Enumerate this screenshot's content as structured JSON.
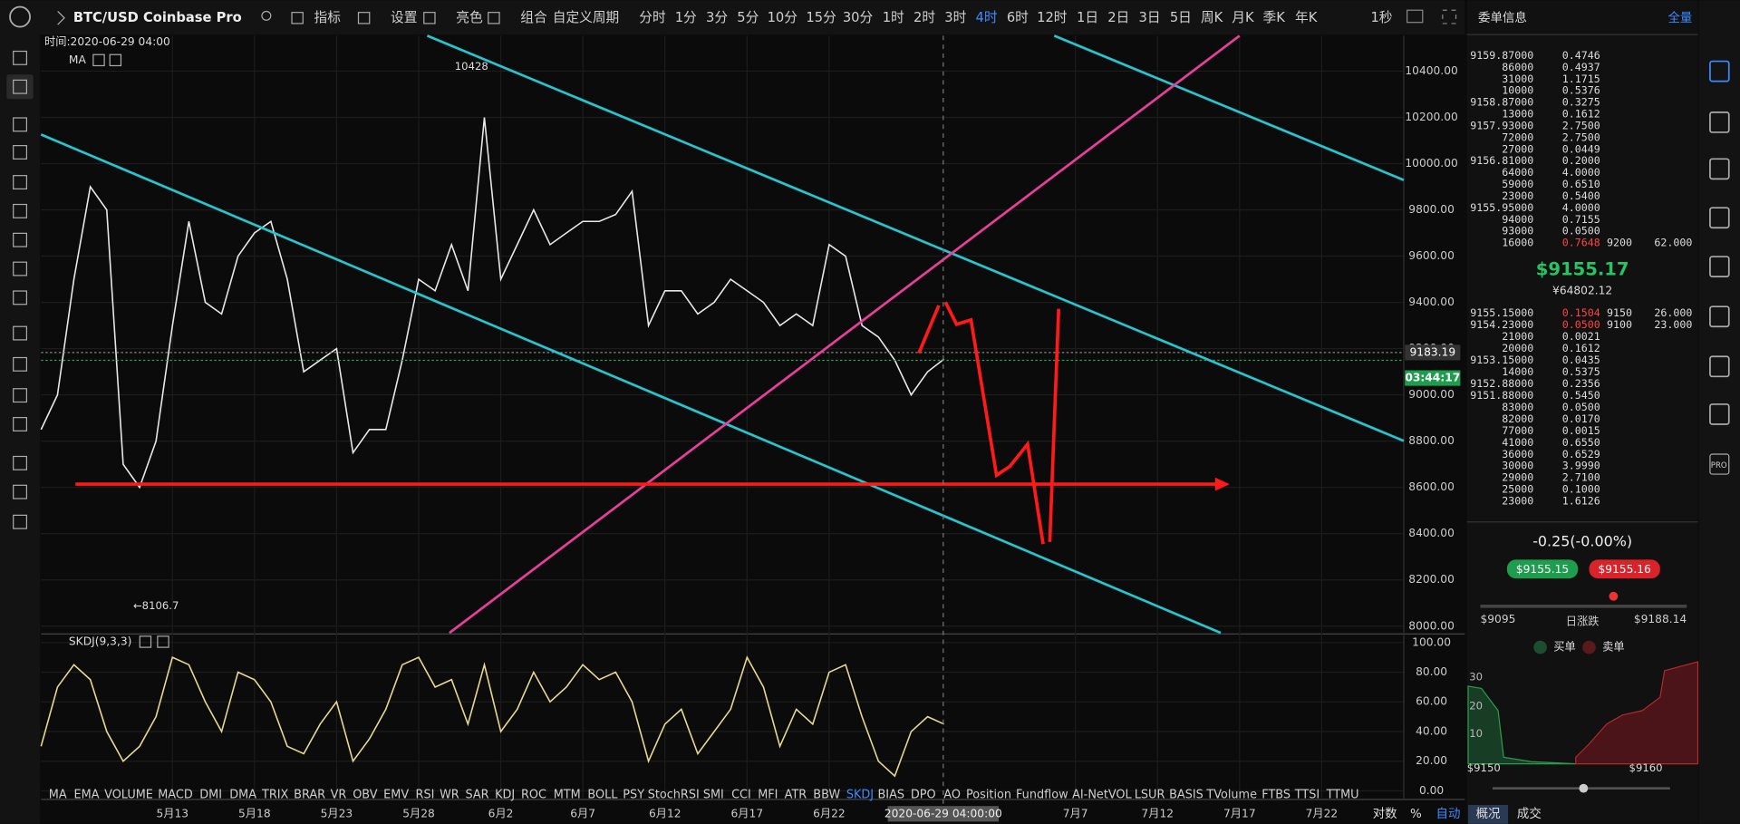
{
  "header": {
    "symbol": "BTC/USD Coinbase Pro",
    "toolbar": [
      "指标",
      "设置",
      "亮色",
      "组合",
      "自定义周期",
      "分时",
      "1分",
      "3分",
      "5分",
      "10分",
      "15分",
      "30分",
      "1时",
      "2时",
      "3时",
      "4时",
      "6时",
      "12时",
      "1日",
      "2日",
      "3日",
      "5日",
      "周K",
      "月K",
      "季K",
      "年K",
      "1秒"
    ],
    "active_index": 15
  },
  "chart_data": [
    {
      "type": "line",
      "crosshair_label": "时间:2020-06-29 04:00",
      "title": "MA",
      "color": "#e8e8e8",
      "x": [
        "2020-05-05",
        "2020-05-06",
        "2020-05-07",
        "2020-05-08",
        "2020-05-09",
        "2020-05-10",
        "2020-05-11",
        "2020-05-12",
        "2020-05-13",
        "2020-05-14",
        "2020-05-15",
        "2020-05-16",
        "2020-05-17",
        "2020-05-18",
        "2020-05-19",
        "2020-05-20",
        "2020-05-21",
        "2020-05-22",
        "2020-05-23",
        "2020-05-24",
        "2020-05-25",
        "2020-05-26",
        "2020-05-27",
        "2020-05-28",
        "2020-05-29",
        "2020-05-30",
        "2020-05-31",
        "2020-06-01",
        "2020-06-02",
        "2020-06-03",
        "2020-06-04",
        "2020-06-05",
        "2020-06-06",
        "2020-06-07",
        "2020-06-08",
        "2020-06-09",
        "2020-06-10",
        "2020-06-11",
        "2020-06-12",
        "2020-06-13",
        "2020-06-14",
        "2020-06-15",
        "2020-06-16",
        "2020-06-17",
        "2020-06-18",
        "2020-06-19",
        "2020-06-20",
        "2020-06-21",
        "2020-06-22",
        "2020-06-23",
        "2020-06-24",
        "2020-06-25",
        "2020-06-26",
        "2020-06-27",
        "2020-06-28",
        "2020-06-29"
      ],
      "values": [
        8850,
        9000,
        9500,
        9900,
        9800,
        8700,
        8600,
        8800,
        9300,
        9750,
        9400,
        9350,
        9600,
        9700,
        9750,
        9500,
        9100,
        9150,
        9200,
        8750,
        8850,
        8850,
        9150,
        9500,
        9450,
        9650,
        9450,
        10200,
        9500,
        9650,
        9800,
        9650,
        9700,
        9750,
        9750,
        9780,
        9880,
        9300,
        9450,
        9450,
        9350,
        9400,
        9500,
        9450,
        9400,
        9300,
        9350,
        9300,
        9650,
        9600,
        9300,
        9250,
        9150,
        9000,
        9100,
        9155
      ],
      "xlim": [
        "2020-05-05",
        "2020-07-27"
      ],
      "ylim": [
        7971,
        10553
      ],
      "yticks": [
        {
          "value": 8000,
          "label": "8000.00"
        },
        {
          "value": 8200,
          "label": "8200.00"
        },
        {
          "value": 8400,
          "label": "8400.00"
        },
        {
          "value": 8600,
          "label": "8600.00"
        },
        {
          "value": 8800,
          "label": "8800.00"
        },
        {
          "value": 9000,
          "label": "9000.00"
        },
        {
          "value": 9200,
          "label": "9200.00"
        },
        {
          "value": 9400,
          "label": "9400.00"
        },
        {
          "value": 9600,
          "label": "9600.00"
        },
        {
          "value": 9800,
          "label": "9800.00"
        },
        {
          "value": 10000,
          "label": "10000.00"
        },
        {
          "value": 10200,
          "label": "10200.00"
        },
        {
          "value": 10400,
          "label": "10400.00"
        }
      ],
      "xticks": [
        {
          "value": "2020-05-13",
          "label": "5月13"
        },
        {
          "value": "2020-05-18",
          "label": "5月18"
        },
        {
          "value": "2020-05-23",
          "label": "5月23"
        },
        {
          "value": "2020-05-28",
          "label": "5月28"
        },
        {
          "value": "2020-06-02",
          "label": "6月2"
        },
        {
          "value": "2020-06-07",
          "label": "6月7"
        },
        {
          "value": "2020-06-12",
          "label": "6月12"
        },
        {
          "value": "2020-06-17",
          "label": "6月17"
        },
        {
          "value": "2020-06-22",
          "label": "6月22"
        },
        {
          "value": "2020-07-07",
          "label": "7月7"
        },
        {
          "value": "2020-07-12",
          "label": "7月12"
        },
        {
          "value": "2020-07-17",
          "label": "7月17"
        },
        {
          "value": "2020-07-22",
          "label": "7月22"
        }
      ],
      "crosshair_x_label": "2020-06-29 04:00:00",
      "high": 10428,
      "low": {
        "value": 8106.7,
        "label": "←8106.7"
      },
      "last_tag": 9183.19,
      "countdown": "03:44:17",
      "grid": true
    },
    {
      "type": "line",
      "title": "SKDJ(9,3,3)",
      "color": "#e8d890",
      "x": [
        "2020-05-05",
        "2020-05-06",
        "2020-05-07",
        "2020-05-08",
        "2020-05-09",
        "2020-05-10",
        "2020-05-11",
        "2020-05-12",
        "2020-05-13",
        "2020-05-14",
        "2020-05-15",
        "2020-05-16",
        "2020-05-17",
        "2020-05-18",
        "2020-05-19",
        "2020-05-20",
        "2020-05-21",
        "2020-05-22",
        "2020-05-23",
        "2020-05-24",
        "2020-05-25",
        "2020-05-26",
        "2020-05-27",
        "2020-05-28",
        "2020-05-29",
        "2020-05-30",
        "2020-05-31",
        "2020-06-01",
        "2020-06-02",
        "2020-06-03",
        "2020-06-04",
        "2020-06-05",
        "2020-06-06",
        "2020-06-07",
        "2020-06-08",
        "2020-06-09",
        "2020-06-10",
        "2020-06-11",
        "2020-06-12",
        "2020-06-13",
        "2020-06-14",
        "2020-06-15",
        "2020-06-16",
        "2020-06-17",
        "2020-06-18",
        "2020-06-19",
        "2020-06-20",
        "2020-06-21",
        "2020-06-22",
        "2020-06-23",
        "2020-06-24",
        "2020-06-25",
        "2020-06-26",
        "2020-06-27",
        "2020-06-28",
        "2020-06-29"
      ],
      "values": [
        30,
        70,
        85,
        75,
        40,
        20,
        30,
        50,
        90,
        85,
        60,
        40,
        80,
        75,
        60,
        30,
        25,
        45,
        60,
        20,
        35,
        55,
        85,
        90,
        70,
        75,
        45,
        85,
        40,
        55,
        80,
        60,
        70,
        85,
        75,
        80,
        60,
        20,
        45,
        55,
        25,
        40,
        55,
        90,
        70,
        30,
        55,
        45,
        80,
        85,
        50,
        20,
        10,
        40,
        50,
        45
      ],
      "xlim": [
        "2020-05-05",
        "2020-07-27"
      ],
      "ylim": [
        -5,
        105
      ],
      "yticks": [
        {
          "value": 0,
          "label": "0.00"
        },
        {
          "value": 20,
          "label": "20.00"
        },
        {
          "value": 40,
          "label": "40.00"
        },
        {
          "value": 60,
          "label": "60.00"
        },
        {
          "value": 80,
          "label": "80.00"
        },
        {
          "value": 100,
          "label": "100.00"
        }
      ],
      "grid": true
    }
  ],
  "footer": {
    "indicators": [
      "MA",
      "EMA",
      "VOLUME",
      "MACD",
      "DMI",
      "DMA",
      "TRIX",
      "BRAR",
      "VR",
      "OBV",
      "EMV",
      "RSI",
      "WR",
      "SAR",
      "KDJ",
      "ROC",
      "MTM",
      "BOLL",
      "PSY",
      "StochRSI",
      "SMI",
      "CCI",
      "MFI",
      "ATR",
      "BBW",
      "SKDJ",
      "BIAS",
      "DPO",
      "AO",
      "Position",
      "Fundflow",
      "AI-NetVOL",
      "LSUR",
      "BASIS",
      "TVolume",
      "FTBS",
      "TTSI",
      "TTMU"
    ],
    "active_index": 25,
    "options": [
      "对数",
      "%",
      "自动"
    ]
  },
  "orderbook": {
    "title": "委单信息",
    "mode": "全量",
    "asks": [
      [
        "9159.87000",
        "0.4746"
      ],
      [
        "86000",
        "0.4937"
      ],
      [
        "31000",
        "1.1715"
      ],
      [
        "10000",
        "0.5376"
      ],
      [
        "9158.87000",
        "0.3275"
      ],
      [
        "13000",
        "0.1612"
      ],
      [
        "9157.93000",
        "2.7500"
      ],
      [
        "72000",
        "2.7500"
      ],
      [
        "27000",
        "0.0449"
      ],
      [
        "9156.81000",
        "0.2000"
      ],
      [
        "64000",
        "4.0000"
      ],
      [
        "59000",
        "0.6510"
      ],
      [
        "23000",
        "0.5400"
      ],
      [
        "9155.95000",
        "4.0000"
      ],
      [
        "94000",
        "0.7155"
      ],
      [
        "93000",
        "0.0500"
      ],
      [
        "16000",
        "0.7648",
        "9200",
        "62.000"
      ]
    ],
    "last_price": "$9155.17",
    "cny": "¥64802.12",
    "bids": [
      [
        "9155.15000",
        "0.1504",
        "9150",
        "26.000"
      ],
      [
        "9154.23000",
        "0.0500",
        "9100",
        "23.000"
      ],
      [
        "21000",
        "0.0021"
      ],
      [
        "20000",
        "0.1612"
      ],
      [
        "9153.15000",
        "0.0435"
      ],
      [
        "14000",
        "0.5375"
      ],
      [
        "9152.88000",
        "0.2356"
      ],
      [
        "9151.88000",
        "0.5450"
      ],
      [
        "83000",
        "0.0500"
      ],
      [
        "82000",
        "0.0170"
      ],
      [
        "77000",
        "0.0015"
      ],
      [
        "41000",
        "0.6550"
      ],
      [
        "36000",
        "0.6529"
      ],
      [
        "30000",
        "3.9990"
      ],
      [
        "29000",
        "2.7100"
      ],
      [
        "25000",
        "0.1000"
      ],
      [
        "23000",
        "1.6126"
      ]
    ]
  },
  "summary": {
    "change": "-0.25(-0.00%)",
    "bid": "$9155.15",
    "ask": "$9155.16",
    "low": "$9095",
    "range_label": "日涨跌",
    "high": "$9188.14",
    "legend": [
      "买单",
      "卖单"
    ],
    "depth_yticks": [
      "30",
      "20",
      "10"
    ],
    "depth_xticks": [
      "$9150",
      "$9160"
    ],
    "tabs": [
      "概况",
      "成交"
    ]
  },
  "sidebar": {
    "pro": "PRO"
  }
}
